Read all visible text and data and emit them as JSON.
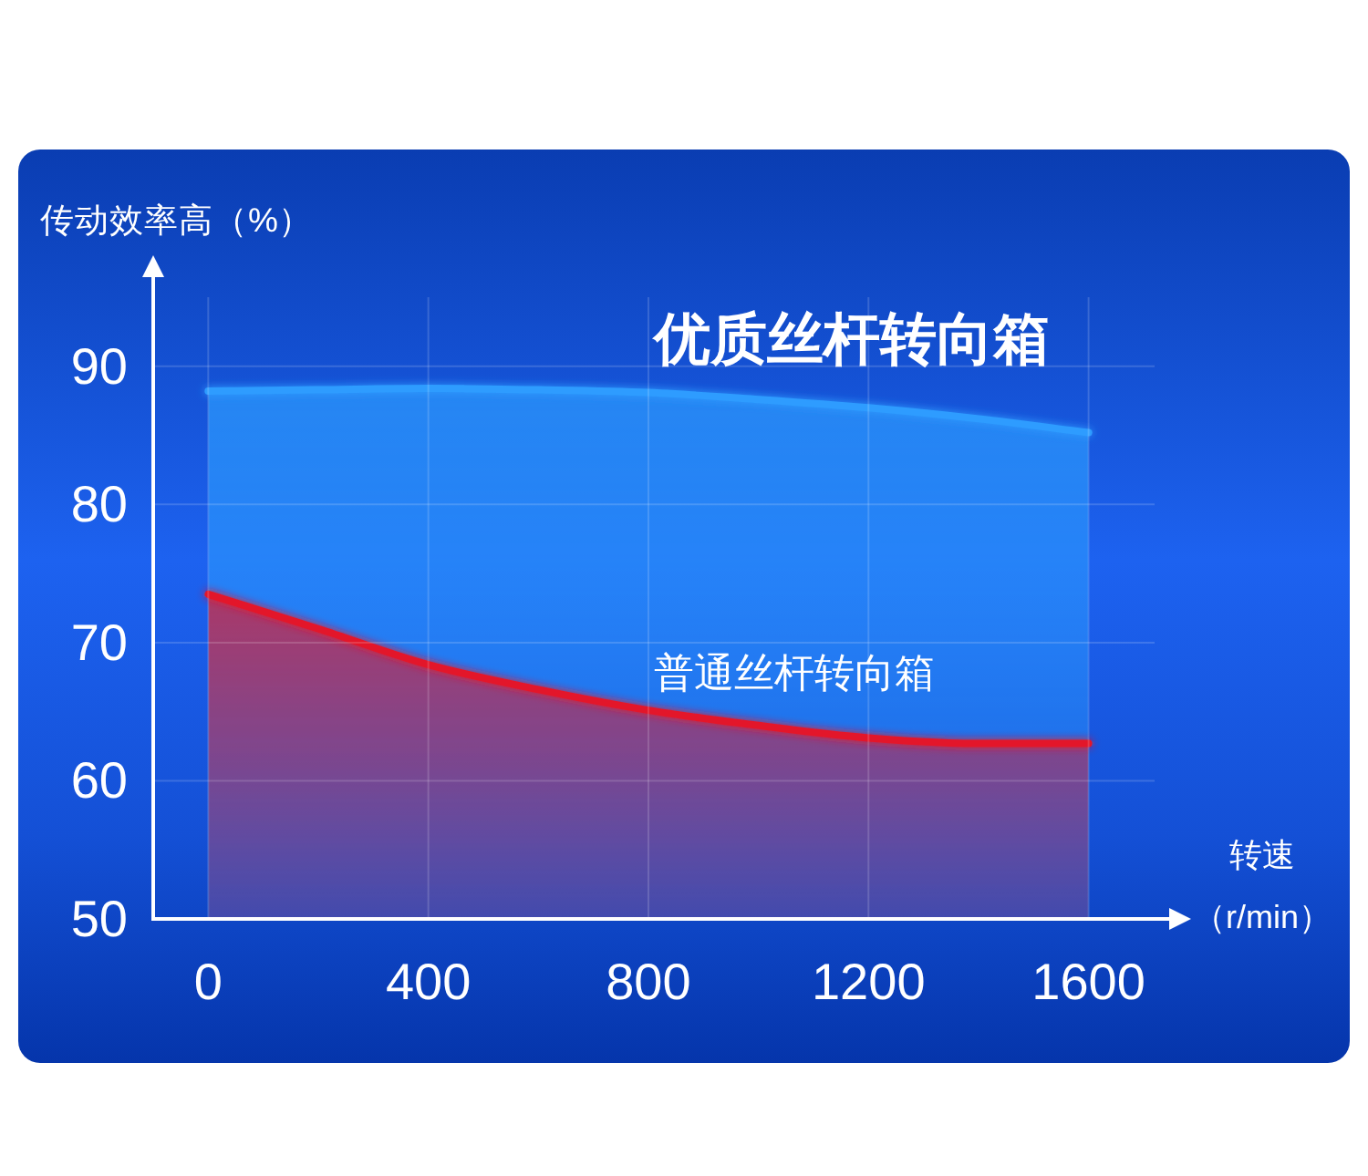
{
  "chart_data": {
    "type": "area",
    "xlabel": "转速（r/min）",
    "ylabel": "传动效率高（%）",
    "x": [
      0,
      200,
      400,
      600,
      800,
      1000,
      1200,
      1400,
      1600
    ],
    "series": [
      {
        "name": "优质丝杆转向箱",
        "color": "#2e9cff",
        "values": [
          88.2,
          88.3,
          88.4,
          88.3,
          88.1,
          87.6,
          87.0,
          86.2,
          85.2
        ]
      },
      {
        "name": "普通丝杆转向箱",
        "color": "#e3192b",
        "values": [
          73.5,
          71.0,
          68.4,
          66.6,
          65.1,
          64.0,
          63.1,
          62.7,
          62.7
        ]
      }
    ],
    "xlim": [
      -100,
      1720
    ],
    "ylim": [
      50,
      95
    ],
    "xticks": [
      0,
      400,
      800,
      1200,
      1600
    ],
    "yticks": [
      50,
      60,
      70,
      80,
      90
    ],
    "grid": true
  }
}
